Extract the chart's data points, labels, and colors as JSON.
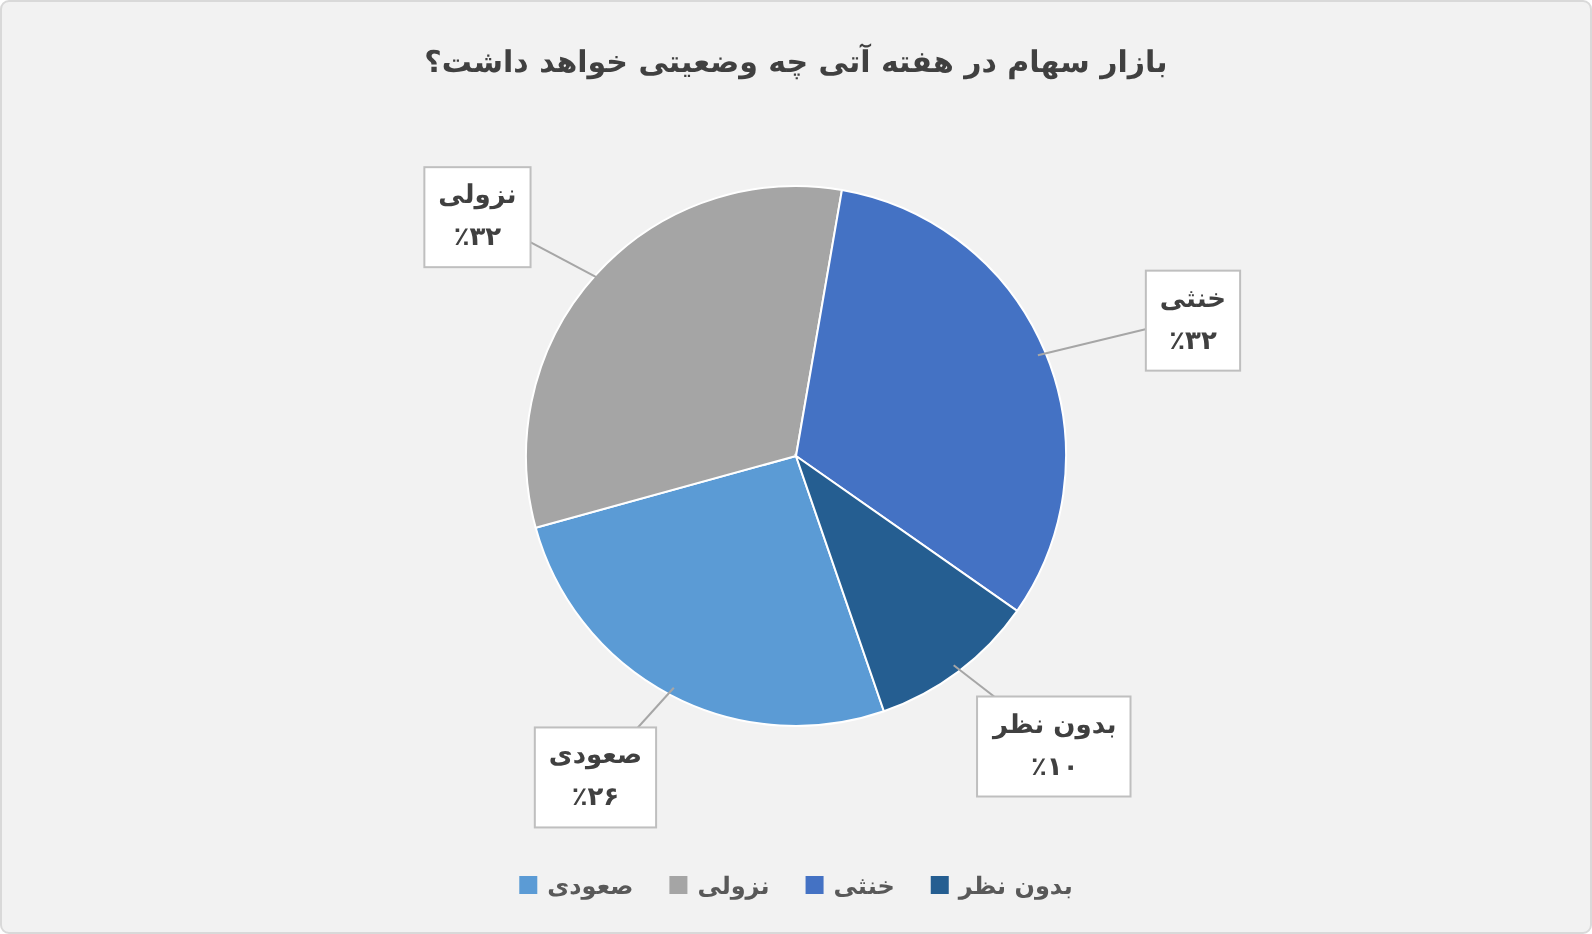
{
  "chart_data": {
    "type": "pie",
    "title": "بازار سهام در هفته آتی چه وضعیتی خواهد داشت؟",
    "categories": [
      "صعودی",
      "نزولی",
      "خنثی",
      "بدون نظر"
    ],
    "values": [
      26,
      32,
      32,
      10
    ],
    "colors": [
      "#5b9bd5",
      "#a5a5a5",
      "#4472c4",
      "#255e91"
    ],
    "value_labels": [
      "٪۲۶",
      "٪۳۲",
      "٪۳۲",
      "٪۱۰"
    ],
    "legend": "bottom"
  }
}
